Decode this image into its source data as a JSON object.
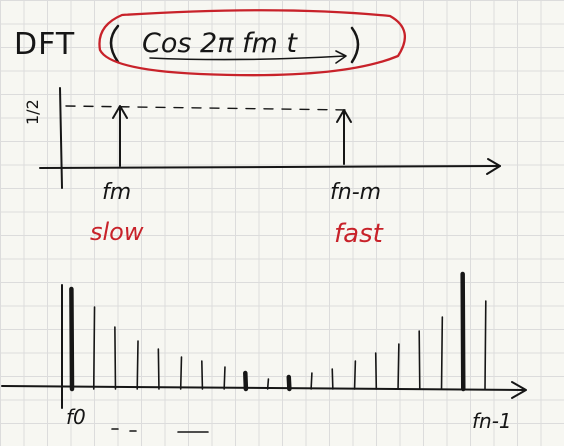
{
  "header": {
    "prefix": "DFT",
    "expression": "Cos 2π fm t"
  },
  "top_plot": {
    "y_tick_label": "1/2",
    "left_freq_label": "fm",
    "left_note": "slow",
    "right_freq_label": "fn-m",
    "right_note": "fast"
  },
  "bottom_plot": {
    "left_label": "f0",
    "right_label": "fn-1",
    "spikes": [
      {
        "bin": 0,
        "value": 1.0,
        "bold": true
      },
      {
        "bin": 1,
        "value": 0.82,
        "bold": false
      },
      {
        "bin": 2,
        "value": 0.62,
        "bold": false
      },
      {
        "bin": 3,
        "value": 0.48,
        "bold": false
      },
      {
        "bin": 4,
        "value": 0.4,
        "bold": false
      },
      {
        "bin": 5,
        "value": 0.32,
        "bold": false
      },
      {
        "bin": 6,
        "value": 0.28,
        "bold": false
      },
      {
        "bin": 7,
        "value": 0.22,
        "bold": false
      },
      {
        "bin": 8,
        "value": 0.16,
        "bold": true
      },
      {
        "bin": 9,
        "value": 0.1,
        "bold": false
      },
      {
        "bin": 10,
        "value": 0.12,
        "bold": true
      },
      {
        "bin": 11,
        "value": 0.16,
        "bold": false
      },
      {
        "bin": 12,
        "value": 0.2,
        "bold": false
      },
      {
        "bin": 13,
        "value": 0.28,
        "bold": false
      },
      {
        "bin": 14,
        "value": 0.36,
        "bold": false
      },
      {
        "bin": 15,
        "value": 0.45,
        "bold": false
      },
      {
        "bin": 16,
        "value": 0.58,
        "bold": false
      },
      {
        "bin": 17,
        "value": 0.72,
        "bold": false
      },
      {
        "bin": 18,
        "value": 1.15,
        "bold": true
      },
      {
        "bin": 19,
        "value": 0.88,
        "bold": false
      }
    ]
  },
  "colors": {
    "ink": "#161616",
    "red": "#c8222a",
    "paper": "#f7f7f2",
    "grid": "#dcdcdc"
  }
}
